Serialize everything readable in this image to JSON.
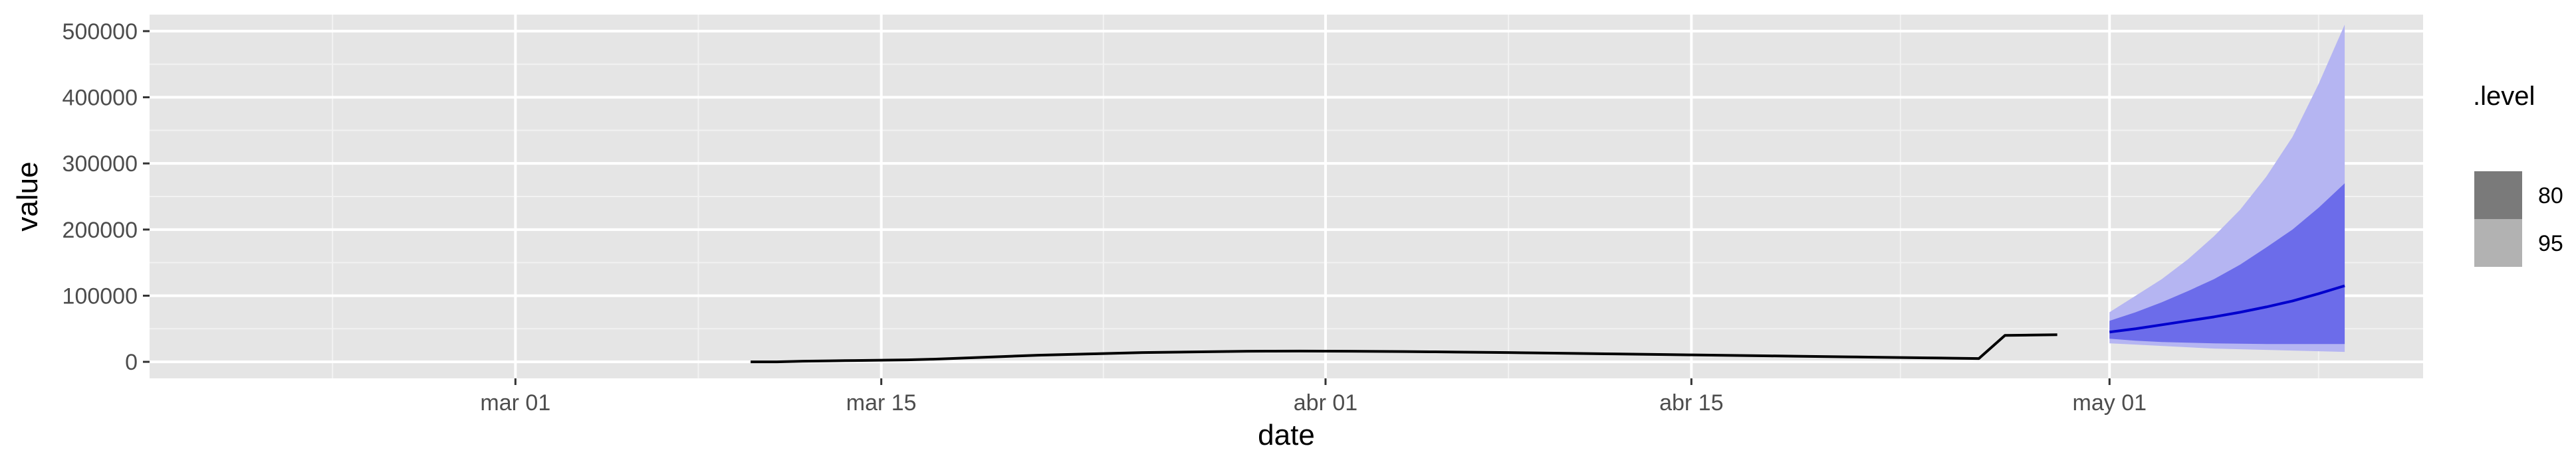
{
  "chart_data": {
    "type": "line",
    "xlabel": "date",
    "ylabel": "value",
    "x_domain": [
      "2020-02-16",
      "2020-05-13"
    ],
    "ylim": [
      -25000,
      525000
    ],
    "grid": true,
    "panel_background": "#e5e5e5",
    "x_ticks": [
      {
        "date": "2020-03-01",
        "label": "mar 01"
      },
      {
        "date": "2020-03-15",
        "label": "mar 15"
      },
      {
        "date": "2020-04-01",
        "label": "abr 01"
      },
      {
        "date": "2020-04-15",
        "label": "abr 15"
      },
      {
        "date": "2020-05-01",
        "label": "may 01"
      }
    ],
    "y_ticks": [
      {
        "value": 0,
        "label": "0"
      },
      {
        "value": 100000,
        "label": "100000"
      },
      {
        "value": 200000,
        "label": "200000"
      },
      {
        "value": 300000,
        "label": "300000"
      },
      {
        "value": 400000,
        "label": "400000"
      },
      {
        "value": 500000,
        "label": "500000"
      }
    ],
    "observed": {
      "color": "#000000",
      "x": [
        "2020-03-10",
        "2020-03-11",
        "2020-03-12",
        "2020-03-13",
        "2020-03-14",
        "2020-03-15",
        "2020-03-16",
        "2020-03-17",
        "2020-03-18",
        "2020-03-19",
        "2020-03-20",
        "2020-03-21",
        "2020-03-22",
        "2020-03-23",
        "2020-03-24",
        "2020-03-25",
        "2020-03-26",
        "2020-03-27",
        "2020-03-28",
        "2020-03-29",
        "2020-03-30",
        "2020-03-31",
        "2020-04-01",
        "2020-04-02",
        "2020-04-03",
        "2020-04-04",
        "2020-04-05",
        "2020-04-06",
        "2020-04-07",
        "2020-04-08",
        "2020-04-09",
        "2020-04-10",
        "2020-04-11",
        "2020-04-12",
        "2020-04-13",
        "2020-04-14",
        "2020-04-15",
        "2020-04-16",
        "2020-04-17",
        "2020-04-18",
        "2020-04-19",
        "2020-04-20",
        "2020-04-21",
        "2020-04-22",
        "2020-04-23",
        "2020-04-24",
        "2020-04-25",
        "2020-04-26",
        "2020-04-27",
        "2020-04-28",
        "2020-04-29"
      ],
      "y": [
        0,
        0,
        1000,
        1500,
        2000,
        2500,
        3000,
        4000,
        5500,
        7000,
        8500,
        10000,
        11000,
        12000,
        13000,
        14000,
        14500,
        15000,
        15500,
        16000,
        16200,
        16300,
        16200,
        16000,
        15800,
        15500,
        15200,
        14800,
        14400,
        14000,
        13500,
        13000,
        12500,
        12000,
        11500,
        11000,
        10500,
        10000,
        9500,
        9000,
        8500,
        8000,
        7500,
        7000,
        6500,
        6000,
        5500,
        5000,
        40000,
        40500,
        41000
      ]
    },
    "forecast": {
      "line_color": "#0000cd",
      "x": [
        "2020-05-01",
        "2020-05-02",
        "2020-05-03",
        "2020-05-04",
        "2020-05-05",
        "2020-05-06",
        "2020-05-07",
        "2020-05-08",
        "2020-05-09",
        "2020-05-10"
      ],
      "mean": [
        45000,
        50000,
        56000,
        62000,
        68000,
        75000,
        83000,
        92000,
        103000,
        115000
      ]
    },
    "intervals": [
      {
        "level": "80",
        "fill": "#6c6cea",
        "lower": [
          35000,
          32000,
          30000,
          29000,
          28000,
          27500,
          27000,
          27000,
          27000,
          27000
        ],
        "upper": [
          62000,
          75000,
          90000,
          107000,
          125000,
          147000,
          173000,
          200000,
          233000,
          270000
        ]
      },
      {
        "level": "95",
        "fill": "#b5b5f2",
        "lower": [
          28000,
          26000,
          24000,
          22000,
          20000,
          19000,
          18000,
          17000,
          16000,
          15000
        ],
        "upper": [
          75000,
          100000,
          125000,
          155000,
          190000,
          230000,
          280000,
          340000,
          420000,
          510000
        ]
      }
    ],
    "legend": {
      "title": ".level",
      "position": "right",
      "items": [
        {
          "label": "80",
          "color": "#7a7a7a"
        },
        {
          "label": "95",
          "color": "#b2b2b2"
        }
      ]
    }
  }
}
